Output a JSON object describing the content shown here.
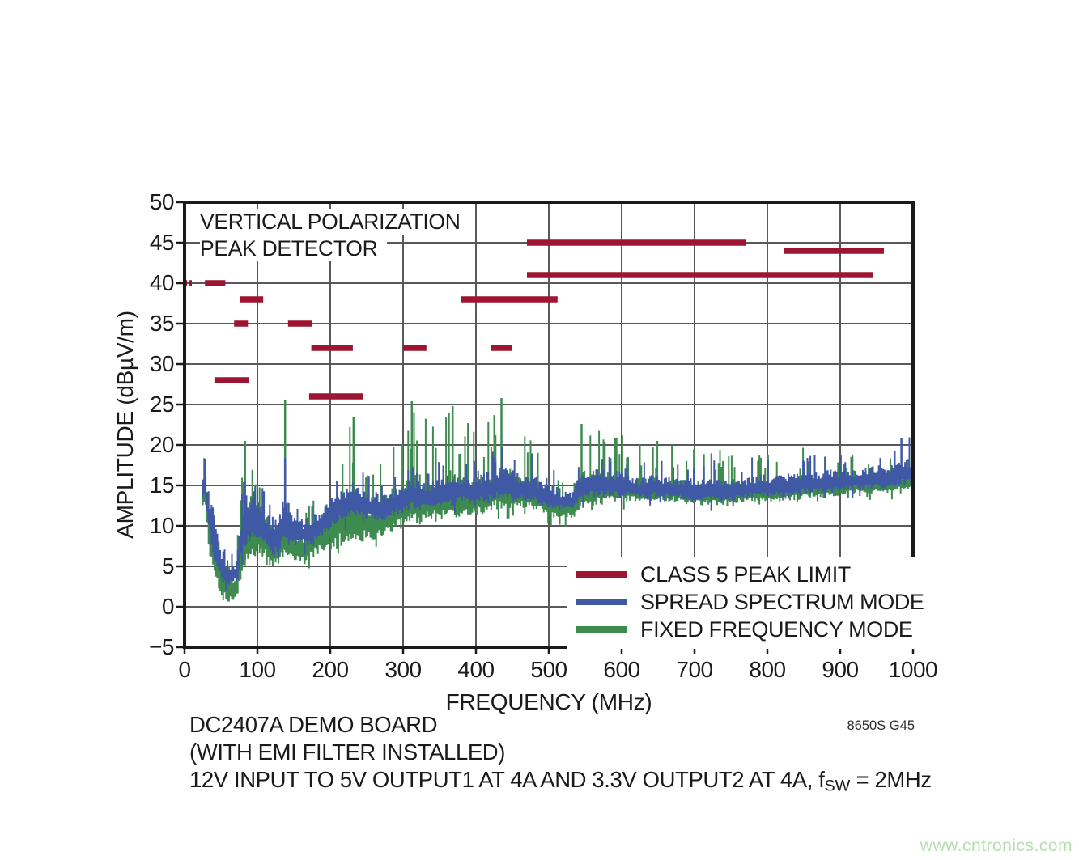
{
  "page": {
    "watermark": "www.cntronics.com",
    "watermark_color": "#b6dfb0",
    "background": "#ffffff"
  },
  "chart_data": {
    "type": "line",
    "subtype": "emi-spectrum",
    "annotation_lines": [
      "VERTICAL POLARIZATION",
      "PEAK DETECTOR"
    ],
    "xlabel": "FREQUENCY (MHz)",
    "ylabel": "AMPLITUDE (dBµV/m)",
    "xlim": [
      0,
      1000
    ],
    "ylim": [
      -5,
      50
    ],
    "grid": true,
    "legend_position": "inside-bottom-right",
    "x_ticks": [
      0,
      100,
      200,
      300,
      400,
      500,
      600,
      700,
      800,
      900,
      1000
    ],
    "x_tick_labels": [
      "0",
      "100",
      "200",
      "300",
      "400",
      "500",
      "600",
      "700",
      "800",
      "900",
      "1000"
    ],
    "y_ticks": [
      50,
      45,
      40,
      35,
      30,
      25,
      20,
      15,
      10,
      5,
      0,
      -5
    ],
    "y_tick_labels": [
      "50",
      "45",
      "40",
      "35",
      "30",
      "25",
      "20",
      "15",
      "10",
      "5",
      "0",
      "−5"
    ],
    "colors": {
      "limit": "#9d1531",
      "spread": "#4059a5",
      "fixed": "#3e8b50",
      "grid": "#595959",
      "axis": "#1a1a1a"
    },
    "series": [
      {
        "name": "CLASS 5 PEAK LIMIT",
        "color": "#9d1531",
        "style": "segments",
        "segments": [
          [
            0.2,
            3.5,
            40
          ],
          [
            6.5,
            10,
            40
          ],
          [
            28,
            56,
            40
          ],
          [
            41,
            88,
            28
          ],
          [
            68,
            87,
            35
          ],
          [
            76,
            108,
            38
          ],
          [
            142,
            175,
            35
          ],
          [
            174,
            231,
            32
          ],
          [
            171,
            245,
            26
          ],
          [
            300,
            332,
            32
          ],
          [
            380,
            512,
            38
          ],
          [
            420,
            450,
            32
          ],
          [
            470,
            771,
            45
          ],
          [
            470,
            945,
            41
          ],
          [
            823,
            960,
            44
          ]
        ]
      },
      {
        "name": "SPREAD SPECTRUM MODE",
        "color": "#4059a5",
        "style": "noise-band",
        "spike_density": 0.14,
        "envelope": [
          [
            25,
            13,
            17.5,
            18.5
          ],
          [
            28,
            14,
            18,
            18.5
          ],
          [
            33,
            9,
            15,
            15.5
          ],
          [
            42,
            5,
            10,
            11
          ],
          [
            52,
            3,
            7,
            8
          ],
          [
            62,
            2.5,
            5.5,
            6.5
          ],
          [
            72,
            3,
            6,
            8
          ],
          [
            79,
            6,
            14.5,
            16
          ],
          [
            84,
            7,
            14,
            16
          ],
          [
            95,
            8,
            13.5,
            15.5
          ],
          [
            108,
            7.5,
            13,
            15
          ],
          [
            120,
            6,
            10.5,
            12.5
          ],
          [
            130,
            7,
            11,
            13
          ],
          [
            138,
            8,
            15,
            18.5
          ],
          [
            143,
            7,
            12,
            14
          ],
          [
            152,
            7.5,
            11,
            12.5
          ],
          [
            168,
            7.5,
            11,
            12.5
          ],
          [
            180,
            8,
            11.5,
            13.5
          ],
          [
            192,
            9,
            13,
            15.5
          ],
          [
            204,
            10,
            14,
            16.5
          ],
          [
            218,
            10.5,
            14.5,
            16.5
          ],
          [
            232,
            11,
            15.5,
            17.5
          ],
          [
            245,
            11,
            15,
            17
          ],
          [
            258,
            10.5,
            14.5,
            16
          ],
          [
            272,
            10.5,
            14.5,
            16.5
          ],
          [
            285,
            11,
            15,
            17
          ],
          [
            298,
            11.5,
            15,
            17
          ],
          [
            312,
            12,
            16,
            18
          ],
          [
            325,
            12,
            16,
            18
          ],
          [
            340,
            12,
            15.5,
            17.5
          ],
          [
            355,
            12.5,
            16,
            18.5
          ],
          [
            368,
            12.5,
            16.5,
            18.5
          ],
          [
            382,
            13,
            16.5,
            19
          ],
          [
            396,
            12.5,
            16,
            18
          ],
          [
            410,
            13,
            16.5,
            19
          ],
          [
            424,
            13,
            17,
            19.5
          ],
          [
            436,
            13.5,
            17.5,
            20
          ],
          [
            450,
            13,
            17,
            19.5
          ],
          [
            464,
            13,
            16.5,
            18.5
          ],
          [
            478,
            13,
            16.5,
            19
          ],
          [
            492,
            12.5,
            15.5,
            17.5
          ],
          [
            506,
            12,
            15,
            17
          ],
          [
            520,
            12,
            14.5,
            16.5
          ],
          [
            534,
            12,
            14.5,
            16
          ],
          [
            542,
            13,
            16.5,
            19
          ],
          [
            556,
            13.5,
            17,
            19.5
          ],
          [
            572,
            13.5,
            17,
            19
          ],
          [
            588,
            13.5,
            17,
            19.5
          ],
          [
            605,
            13.5,
            16.5,
            18.5
          ],
          [
            625,
            13.5,
            16,
            18.5
          ],
          [
            648,
            13.5,
            16.5,
            18.5
          ],
          [
            670,
            13.5,
            16,
            18
          ],
          [
            695,
            13,
            16,
            18
          ],
          [
            720,
            13,
            16,
            18.5
          ],
          [
            748,
            13,
            16,
            18
          ],
          [
            775,
            13.5,
            16,
            18.5
          ],
          [
            800,
            13.5,
            16.5,
            18.5
          ],
          [
            830,
            13.5,
            16.5,
            19
          ],
          [
            860,
            14,
            17,
            19
          ],
          [
            890,
            14,
            17,
            19.5
          ],
          [
            915,
            14.5,
            17,
            19.5
          ],
          [
            940,
            14.5,
            17.5,
            19.5
          ],
          [
            965,
            14.5,
            17.5,
            20
          ],
          [
            985,
            15,
            18,
            21
          ],
          [
            1000,
            15,
            18.5,
            21
          ]
        ],
        "spikes": [
          [
            28,
            18.3
          ],
          [
            138,
            18.4
          ],
          [
            436,
            19.8
          ],
          [
            984,
            20.8
          ]
        ]
      },
      {
        "name": "FIXED FREQUENCY MODE",
        "color": "#3e8b50",
        "style": "noise-band",
        "spike_density": 0.2,
        "envelope": [
          [
            25,
            12,
            15,
            16
          ],
          [
            28,
            13,
            16,
            17
          ],
          [
            33,
            7,
            13,
            14
          ],
          [
            42,
            3,
            8,
            10
          ],
          [
            52,
            1,
            5,
            7
          ],
          [
            62,
            0.5,
            3.5,
            5
          ],
          [
            72,
            1,
            4.5,
            7
          ],
          [
            79,
            4,
            17,
            20.5
          ],
          [
            84,
            5,
            15,
            20.5
          ],
          [
            95,
            6,
            14,
            17
          ],
          [
            108,
            6,
            12.5,
            15.5
          ],
          [
            120,
            4.5,
            10,
            13
          ],
          [
            130,
            5,
            10,
            14
          ],
          [
            138,
            6,
            15,
            25.5
          ],
          [
            143,
            6,
            12,
            16
          ],
          [
            152,
            5.5,
            9,
            12
          ],
          [
            168,
            5.5,
            9,
            12
          ],
          [
            180,
            6.5,
            10.5,
            14
          ],
          [
            192,
            7,
            12.5,
            17
          ],
          [
            204,
            7,
            14,
            20.5
          ],
          [
            218,
            7.5,
            14.5,
            20
          ],
          [
            232,
            8,
            15,
            23.5
          ],
          [
            245,
            8,
            14,
            20
          ],
          [
            258,
            8,
            13,
            17.5
          ],
          [
            272,
            8.5,
            13.5,
            18
          ],
          [
            285,
            9,
            15,
            21
          ],
          [
            298,
            9.5,
            15.5,
            22
          ],
          [
            312,
            10,
            16.5,
            25.5
          ],
          [
            325,
            10,
            16.5,
            24
          ],
          [
            340,
            10.5,
            16,
            22.5
          ],
          [
            355,
            10.5,
            16.5,
            23.5
          ],
          [
            368,
            11,
            17,
            25
          ],
          [
            382,
            11,
            16.5,
            24.5
          ],
          [
            396,
            11,
            16,
            22
          ],
          [
            410,
            11.5,
            16.5,
            23
          ],
          [
            424,
            12,
            17,
            24
          ],
          [
            436,
            12,
            17.5,
            25.8
          ],
          [
            450,
            12,
            17,
            24
          ],
          [
            464,
            12,
            16.5,
            22.5
          ],
          [
            478,
            12,
            16,
            23
          ],
          [
            492,
            11.5,
            15,
            21
          ],
          [
            506,
            11,
            14,
            19
          ],
          [
            520,
            11,
            13.5,
            17.5
          ],
          [
            534,
            11,
            13.5,
            16
          ],
          [
            542,
            12,
            17,
            22.5
          ],
          [
            556,
            12.5,
            17,
            23
          ],
          [
            572,
            12.5,
            17,
            22
          ],
          [
            588,
            13,
            16.5,
            22
          ],
          [
            605,
            13,
            16.5,
            21
          ],
          [
            625,
            13,
            16,
            20.5
          ],
          [
            648,
            13,
            16,
            21
          ],
          [
            670,
            13,
            16,
            20
          ],
          [
            695,
            12.5,
            15.5,
            19.5
          ],
          [
            720,
            12.5,
            15.5,
            19.5
          ],
          [
            748,
            12.5,
            15.5,
            19.5
          ],
          [
            775,
            13,
            15.5,
            19
          ],
          [
            800,
            13,
            15.5,
            19.5
          ],
          [
            830,
            13,
            16,
            19.5
          ],
          [
            860,
            13.5,
            16,
            20
          ],
          [
            890,
            13.5,
            16,
            19.5
          ],
          [
            915,
            14,
            16,
            19
          ],
          [
            940,
            14,
            16,
            18.5
          ],
          [
            965,
            14,
            16.5,
            19
          ],
          [
            985,
            14.5,
            16.5,
            19
          ],
          [
            1000,
            14.5,
            17,
            19.5
          ]
        ],
        "spikes": [
          [
            83,
            20.5
          ],
          [
            138,
            25.5
          ],
          [
            232,
            23.4
          ],
          [
            312,
            25.4
          ],
          [
            368,
            24.8
          ],
          [
            435,
            25.8
          ],
          [
            545,
            22.6
          ]
        ]
      }
    ],
    "caption_lines": [
      "DC2407A DEMO BOARD",
      "(WITH EMI FILTER INSTALLED)"
    ],
    "caption_fsw": {
      "prefix": "12V INPUT TO 5V OUTPUT1 AT 4A AND 3.3V OUTPUT2 AT 4A, f",
      "sub": "SW",
      "suffix": " = 2MHz"
    },
    "plot_id": "8650S G45"
  }
}
